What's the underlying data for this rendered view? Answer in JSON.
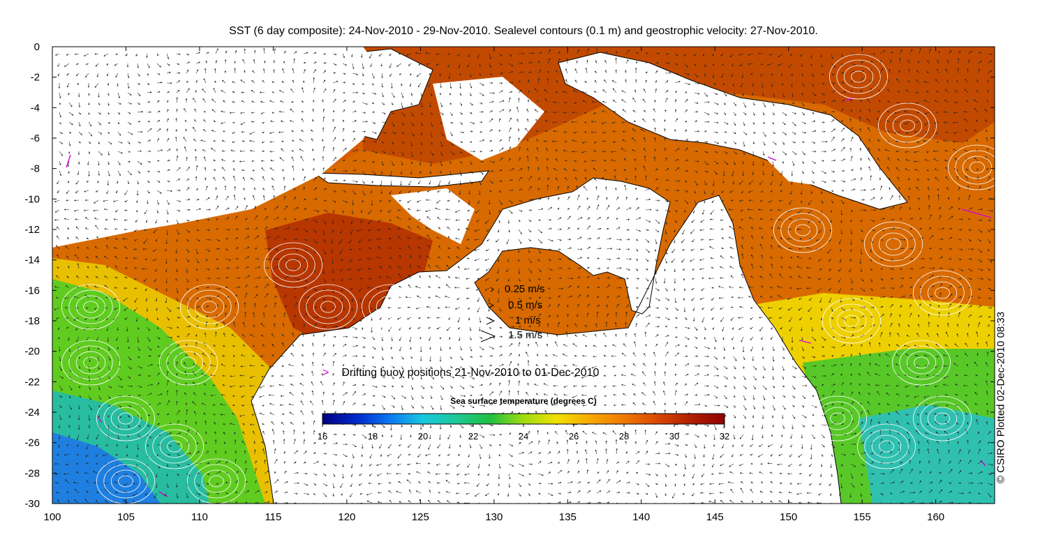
{
  "title": "SST (6 day composite): 24-Nov-2010 - 29-Nov-2010. Sealevel contours (0.1 m) and geostrophic velocity: 27-Nov-2010.",
  "credit": "© CSIRO Plotted 02-Dec-2010 08:33",
  "map_extent": {
    "lon": [
      100,
      164
    ],
    "lat": [
      -30,
      0
    ]
  },
  "x_ticks": [
    "100",
    "105",
    "110",
    "115",
    "120",
    "125",
    "130",
    "135",
    "140",
    "145",
    "150",
    "155",
    "160"
  ],
  "y_ticks": [
    "0",
    "-2",
    "-4",
    "-6",
    "-8",
    "-10",
    "-12",
    "-14",
    "-16",
    "-18",
    "-20",
    "-22",
    "-24",
    "-26",
    "-28",
    "-30"
  ],
  "velocity_scale": [
    "0.25 m/s",
    "0.5 m/s",
    "1 m/s",
    "1.5 m/s"
  ],
  "buoy_legend": {
    "marker": ">",
    "label": "Drifting buoy positions 21-Nov-2010 to 01-Dec-2010"
  },
  "colorbar": {
    "title": "Sea surface temperature (degrees C)",
    "ticks": [
      "16",
      "18",
      "20",
      "22",
      "24",
      "26",
      "28",
      "30",
      "32"
    ],
    "colors": [
      "#000080",
      "#0028c8",
      "#0a78f0",
      "#18c8e0",
      "#1ec896",
      "#20c040",
      "#a0dc10",
      "#f0e000",
      "#f8a800",
      "#f07800",
      "#d84800",
      "#b02000",
      "#900000"
    ]
  },
  "colors": {
    "land": "#ffffff",
    "buoy_track": "#d400d4",
    "contour": "#ffffff",
    "frame": "#000000"
  }
}
